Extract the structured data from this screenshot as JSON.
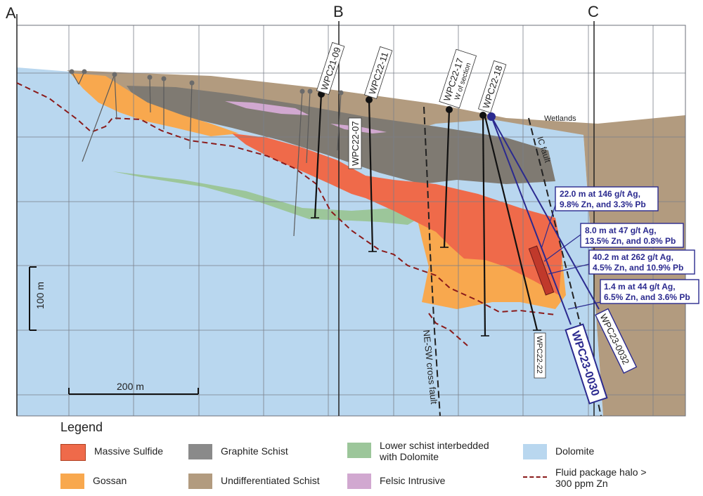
{
  "section_letters": {
    "a": "A",
    "b": "B",
    "c": "C"
  },
  "drillholes": {
    "wpc21_09": "WPC21-09",
    "wpc22_11": "WPC22-11",
    "wpc22_07": "WPC22-07",
    "wpc22_17": "WPC22-17",
    "wpc22_17_note": "W of section",
    "wpc22_18": "WPC22-18",
    "wpc22_22": "WPC22-22",
    "wpc23_0030": "WPC23-0030",
    "wpc23_0032": "WPC23-0032"
  },
  "labels": {
    "wetlands": "Wetlands",
    "ic_fault": "IC fault",
    "ne_sw_fault": "NE-SW cross fault",
    "scale_vertical": "100 m",
    "scale_horizontal": "200 m"
  },
  "intercepts": [
    {
      "line1": "22.0 m at 146 g/t Ag,",
      "line2": "9.8% Zn, and 3.3% Pb"
    },
    {
      "line1": "8.0 m at 47 g/t Ag,",
      "line2": "13.5% Zn, and 0.8% Pb"
    },
    {
      "line1": "40.2 m at 262 g/t Ag,",
      "line2": "4.5% Zn, and 10.9% Pb"
    },
    {
      "line1": "1.4 m at 44 g/t Ag,",
      "line2": "6.5% Zn, and 3.6% Pb"
    }
  ],
  "legend": {
    "title": "Legend",
    "items": [
      {
        "key": "massive_sulfide",
        "label": "Massive Sulfide",
        "color": "#ef6a4a"
      },
      {
        "key": "gossan",
        "label": "Gossan",
        "color": "#f8a84e"
      },
      {
        "key": "graphite_schist",
        "label": "Graphite Schist",
        "color": "#8a8a8a"
      },
      {
        "key": "undiff_schist",
        "label": "Undifferentiated Schist",
        "color": "#b29b7f"
      },
      {
        "key": "lower_schist",
        "label": "Lower schist interbedded with Dolomite",
        "color": "#9cc69a"
      },
      {
        "key": "felsic",
        "label": "Felsic Intrusive",
        "color": "#d1a8d0"
      },
      {
        "key": "dolomite",
        "label": "Dolomite",
        "color": "#b9d7ef"
      },
      {
        "key": "halo",
        "label": "Fluid package halo > 300 ppm Zn",
        "color": "#8b1b1b"
      }
    ]
  }
}
